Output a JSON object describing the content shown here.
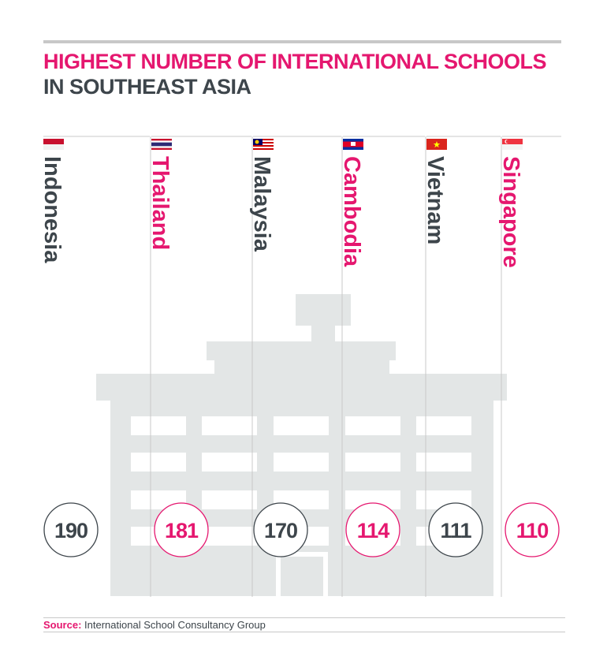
{
  "title_line1": "HIGHEST NUMBER OF INTERNATIONAL SCHOOLS",
  "title_line2": "IN SOUTHEAST ASIA",
  "source_label": "Source:",
  "source_text": "International School Consultancy Group",
  "colors": {
    "accent": "#e5176f",
    "dark": "#3d454b",
    "building": "#e3e6e6",
    "rule": "#c8c8c8"
  },
  "chart_data": {
    "type": "bar",
    "title": "HIGHEST NUMBER OF INTERNATIONAL SCHOOLS IN SOUTHEAST ASIA",
    "categories": [
      "Indonesia",
      "Thailand",
      "Malaysia",
      "Cambodia",
      "Vietnam",
      "Singapore"
    ],
    "values": [
      190,
      181,
      170,
      114,
      111,
      110
    ],
    "value_colors": [
      "dark",
      "accent",
      "dark",
      "accent",
      "dark",
      "accent"
    ],
    "flags": [
      "indonesia-flag",
      "thailand-flag",
      "malaysia-flag",
      "cambodia-flag",
      "vietnam-flag",
      "singapore-flag"
    ],
    "legend": "none",
    "grid": false
  }
}
